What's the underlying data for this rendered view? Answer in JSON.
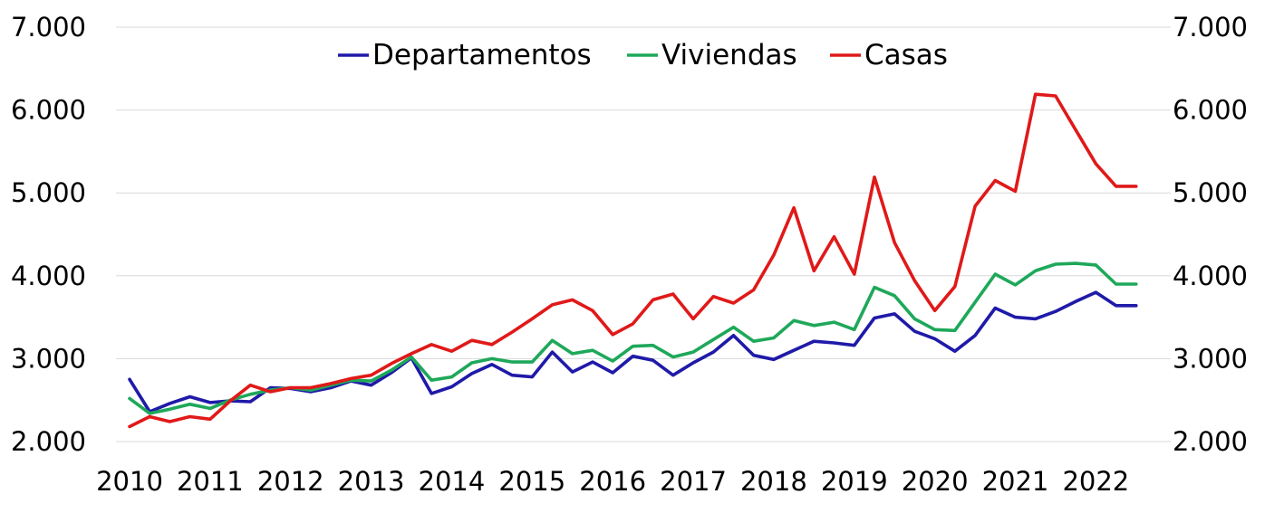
{
  "chart_data": {
    "type": "line",
    "title": "",
    "xlabel": "",
    "ylabel": "",
    "ylim": [
      2000,
      7000
    ],
    "y_ticks": [
      "2.000",
      "3.000",
      "4.000",
      "5.000",
      "6.000",
      "7.000"
    ],
    "y_tick_values": [
      2000,
      3000,
      4000,
      5000,
      6000,
      7000
    ],
    "x_ticks": [
      "2010",
      "2011",
      "2012",
      "2013",
      "2014",
      "2015",
      "2016",
      "2017",
      "2018",
      "2019",
      "2020",
      "2021",
      "2022"
    ],
    "x_tick_positions": [
      2010,
      2011,
      2012,
      2013,
      2014,
      2015,
      2016,
      2017,
      2018,
      2019,
      2020,
      2021,
      2022
    ],
    "xlim": [
      2010,
      2022.75
    ],
    "secondary_y_axis": true,
    "grid": "horizontal",
    "legend_position": "top-center",
    "x": [
      2010.0,
      2010.25,
      2010.5,
      2010.75,
      2011.0,
      2011.25,
      2011.5,
      2011.75,
      2012.0,
      2012.25,
      2012.5,
      2012.75,
      2013.0,
      2013.25,
      2013.5,
      2013.75,
      2014.0,
      2014.25,
      2014.5,
      2014.75,
      2015.0,
      2015.25,
      2015.5,
      2015.75,
      2016.0,
      2016.25,
      2016.5,
      2016.75,
      2017.0,
      2017.25,
      2017.5,
      2017.75,
      2018.0,
      2018.25,
      2018.5,
      2018.75,
      2019.0,
      2019.25,
      2019.5,
      2019.75,
      2020.0,
      2020.25,
      2020.5,
      2020.75,
      2021.0,
      2021.25,
      2021.5,
      2021.75,
      2022.0,
      2022.25,
      2022.5
    ],
    "series": [
      {
        "name": "Departamentos",
        "color": "#1f1aa8",
        "values": [
          2750,
          2360,
          2460,
          2540,
          2470,
          2490,
          2480,
          2650,
          2640,
          2600,
          2650,
          2730,
          2680,
          2830,
          3010,
          2580,
          2660,
          2820,
          2930,
          2800,
          2780,
          3080,
          2840,
          2960,
          2830,
          3030,
          2980,
          2800,
          2950,
          3080,
          3280,
          3040,
          2990,
          3100,
          3210,
          3190,
          3160,
          3490,
          3540,
          3330,
          3240,
          3090,
          3280,
          3610,
          3500,
          3480,
          3570,
          3690,
          3800,
          3640,
          3640
        ]
      },
      {
        "name": "Viviendas",
        "color": "#1ea85a",
        "values": [
          2520,
          2340,
          2390,
          2450,
          2400,
          2500,
          2570,
          2620,
          2650,
          2620,
          2680,
          2740,
          2730,
          2860,
          3020,
          2740,
          2780,
          2950,
          3000,
          2960,
          2960,
          3220,
          3060,
          3100,
          2970,
          3150,
          3160,
          3020,
          3080,
          3230,
          3380,
          3210,
          3250,
          3460,
          3400,
          3440,
          3350,
          3860,
          3760,
          3480,
          3350,
          3340,
          3680,
          4020,
          3890,
          4060,
          4140,
          4150,
          4130,
          3900,
          3900
        ]
      },
      {
        "name": "Casas",
        "color": "#e01919",
        "values": [
          2180,
          2300,
          2240,
          2300,
          2270,
          2490,
          2680,
          2600,
          2650,
          2650,
          2700,
          2760,
          2800,
          2940,
          3060,
          3170,
          3090,
          3220,
          3170,
          3320,
          3480,
          3650,
          3710,
          3580,
          3290,
          3420,
          3710,
          3780,
          3480,
          3750,
          3670,
          3830,
          4250,
          4820,
          4060,
          4470,
          4020,
          5190,
          4400,
          3940,
          3580,
          3870,
          4840,
          5150,
          5020,
          6190,
          6170,
          5760,
          5350,
          5080,
          5080
        ]
      }
    ]
  }
}
